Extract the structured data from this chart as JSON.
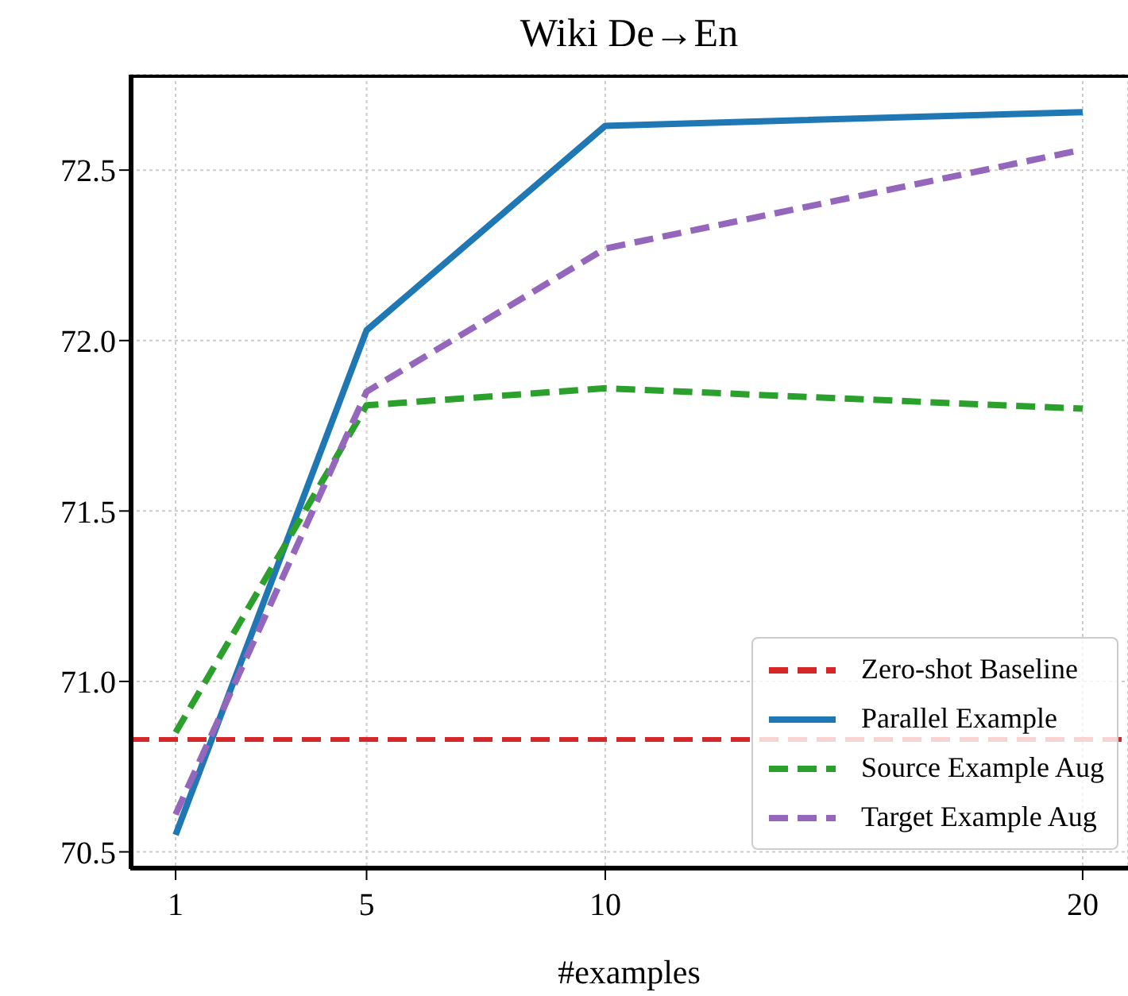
{
  "chart_data": {
    "type": "line",
    "title": "Wiki De→En",
    "xlabel": "#examples",
    "x": [
      1,
      5,
      10,
      20
    ],
    "xlim": [
      0.05,
      20.95
    ],
    "xticks": [
      1,
      5,
      10,
      20
    ],
    "ylim": [
      70.45,
      72.78
    ],
    "yticks": [
      70.5,
      {
        "value": 71,
        "label": "71.0"
      },
      71.5,
      {
        "value": 72,
        "label": "72.0"
      },
      72.5
    ],
    "grid": true,
    "legend": "bottom right",
    "ref_lines": [
      {
        "axis": "y",
        "value": 70.83,
        "label": "Zero-shot Baseline",
        "color": "#d62728",
        "line_style": "dashed"
      }
    ],
    "series": [
      {
        "name": "Parallel Example",
        "color": "#1f77b4",
        "line_style": "solid",
        "values": [
          70.55,
          72.03,
          72.63,
          72.67
        ]
      },
      {
        "name": "Source Example Aug",
        "color": "#2ca02c",
        "line_style": "dashed",
        "values": [
          70.85,
          71.81,
          71.86,
          71.8
        ]
      },
      {
        "name": "Target Example Aug",
        "color": "#9467bd",
        "line_style": "dashed",
        "values": [
          70.61,
          71.85,
          72.27,
          72.56
        ]
      }
    ]
  }
}
